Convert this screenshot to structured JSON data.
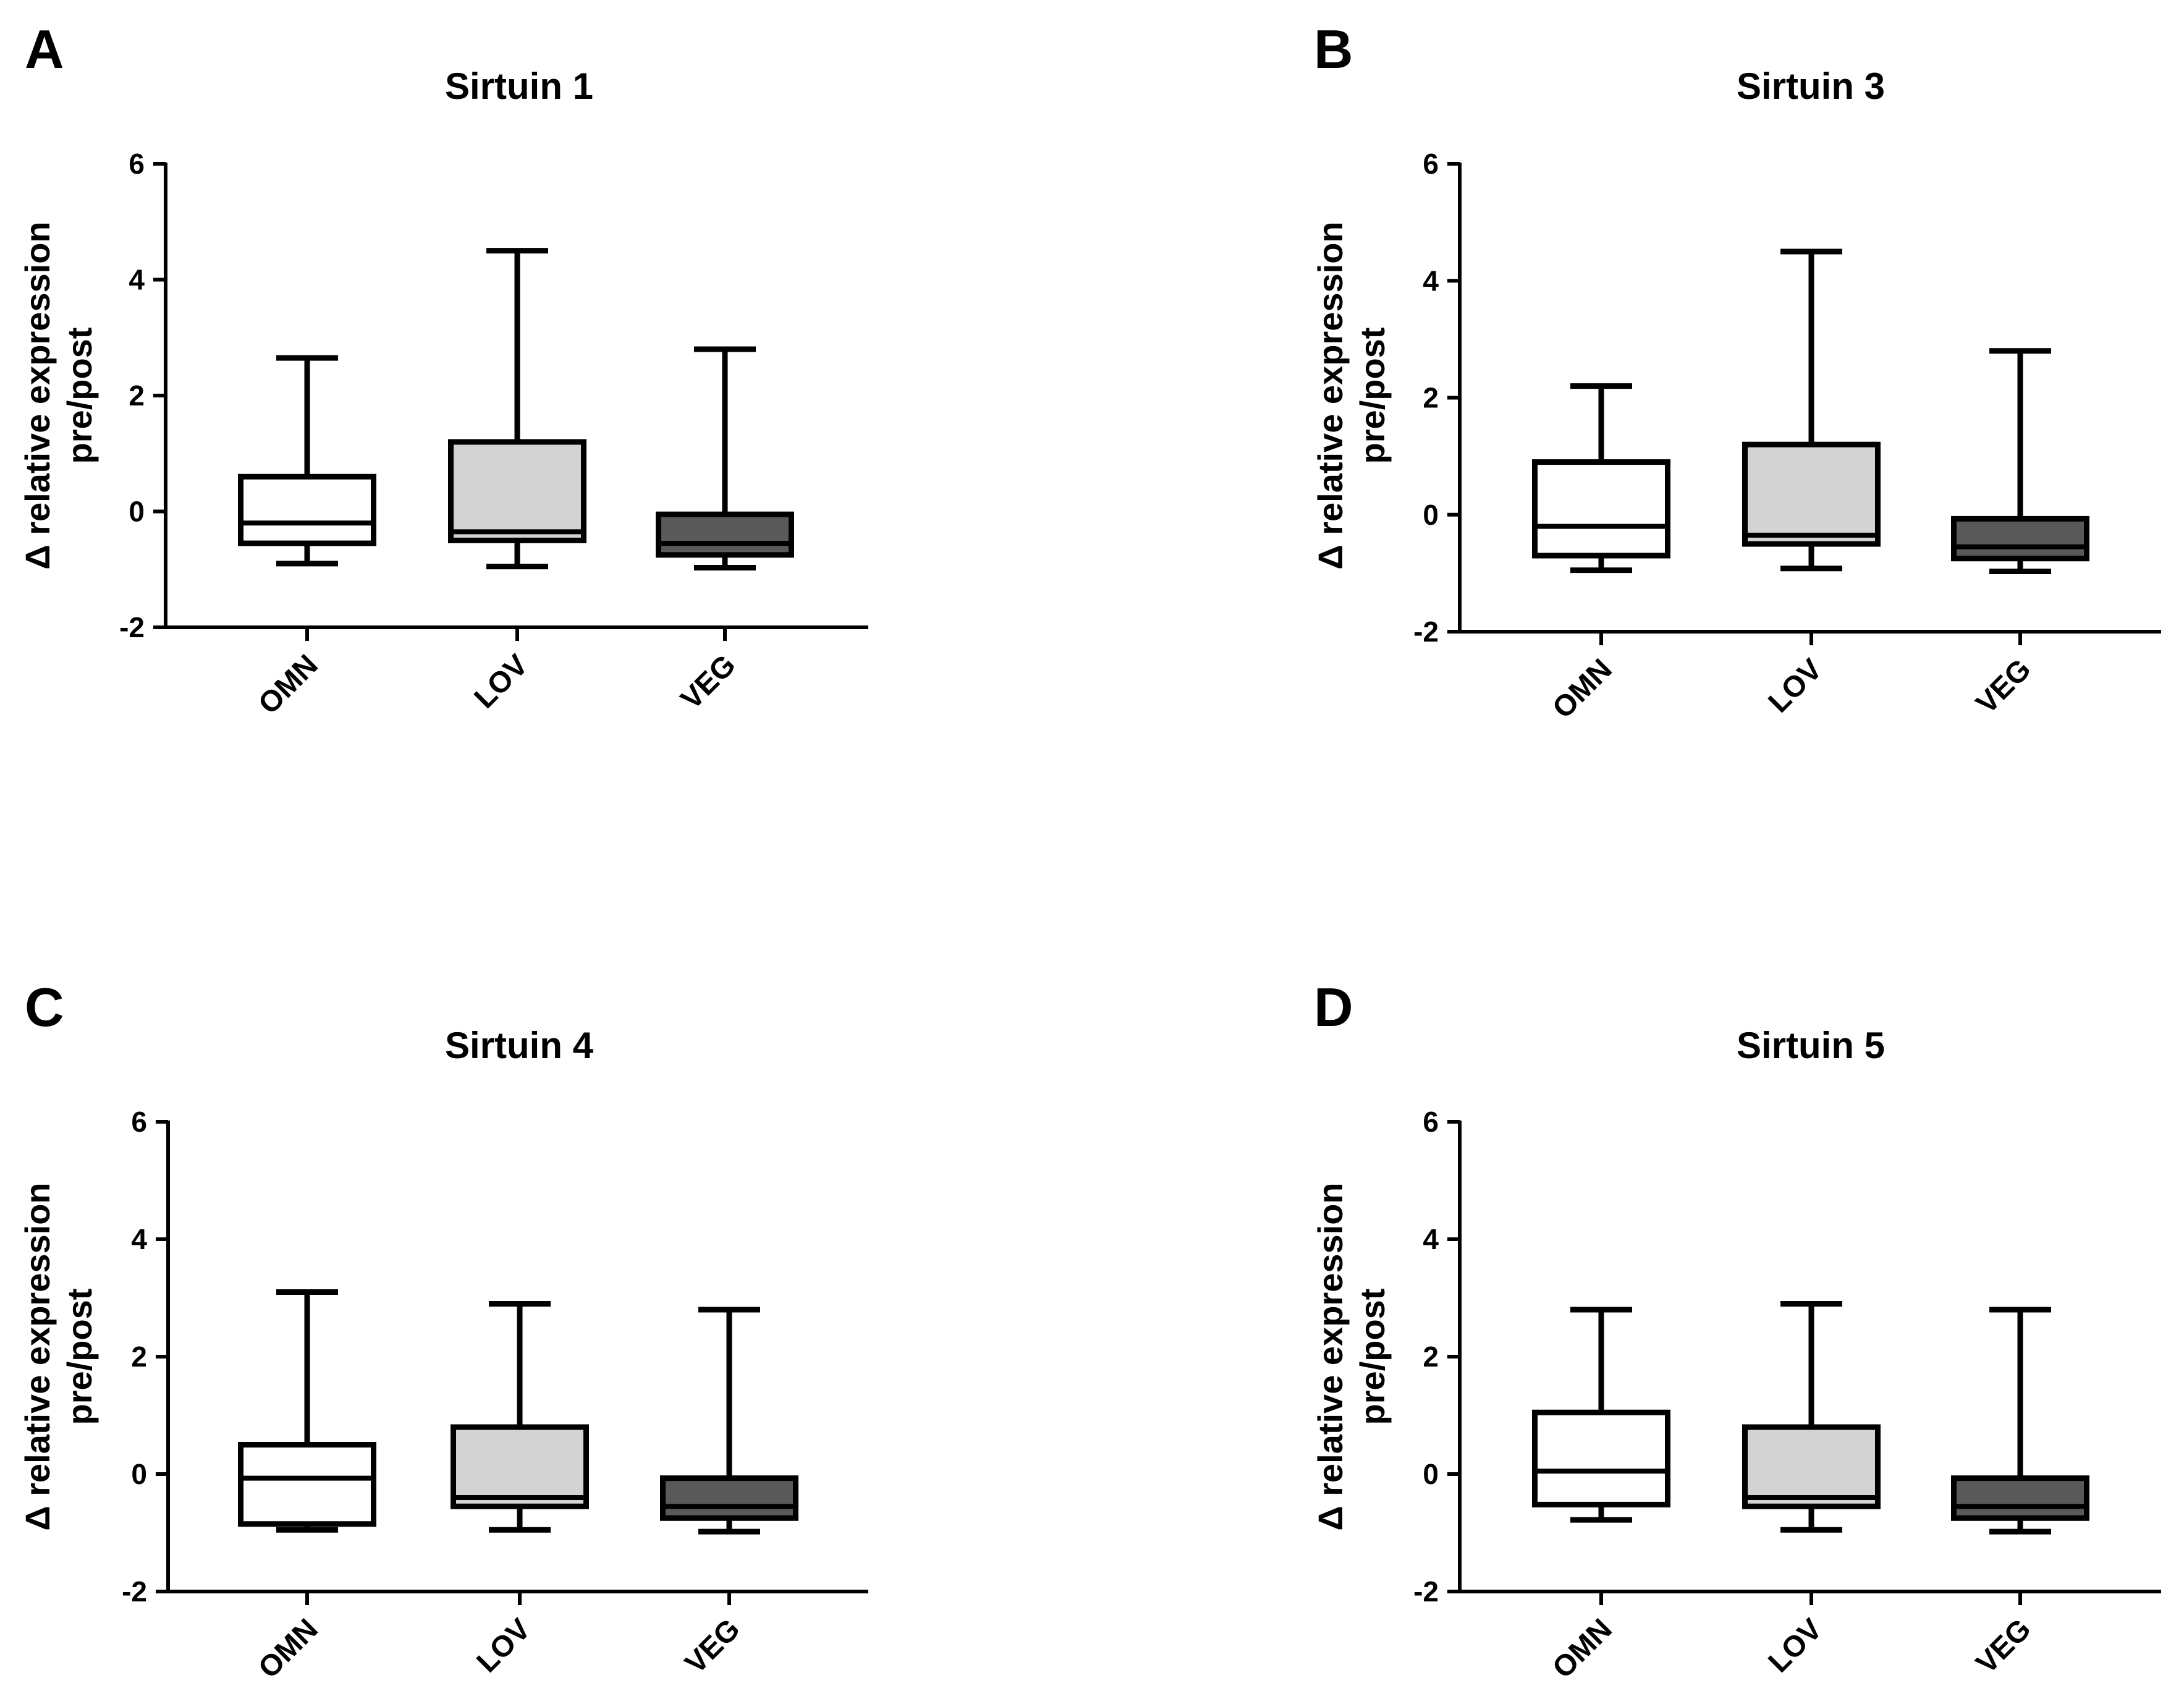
{
  "figure": {
    "panels": [
      {
        "letter": "A"
      },
      {
        "letter": "B"
      },
      {
        "letter": "C"
      },
      {
        "letter": "D"
      }
    ]
  },
  "colors": {
    "OMN": "#ffffff",
    "LOV": "#d3d3d3",
    "VEG": "#595959",
    "stroke": "#000000"
  },
  "chart_data": [
    {
      "type": "boxplot",
      "panel": "A",
      "title": "Sirtuin 1",
      "xlabel": "",
      "ylabel_line1": "Δ relative expression",
      "ylabel_line2": "pre/post",
      "ylim": [
        -2,
        6
      ],
      "yticks": [
        -2,
        0,
        2,
        4,
        6
      ],
      "categories": [
        "OMN",
        "LOV",
        "VEG"
      ],
      "boxes": [
        {
          "category": "OMN",
          "min": -0.9,
          "q1": -0.55,
          "median": -0.2,
          "q3": 0.6,
          "max": 2.65
        },
        {
          "category": "LOV",
          "min": -0.95,
          "q1": -0.5,
          "median": -0.35,
          "q3": 1.2,
          "max": 4.5
        },
        {
          "category": "VEG",
          "min": -0.97,
          "q1": -0.75,
          "median": -0.55,
          "q3": -0.05,
          "max": 2.8
        }
      ]
    },
    {
      "type": "boxplot",
      "panel": "B",
      "title": "Sirtuin 3",
      "xlabel": "",
      "ylabel_line1": "Δ relative expression",
      "ylabel_line2": "pre/post",
      "ylim": [
        -2,
        6
      ],
      "yticks": [
        -2,
        0,
        2,
        4,
        6
      ],
      "categories": [
        "OMN",
        "LOV",
        "VEG"
      ],
      "boxes": [
        {
          "category": "OMN",
          "min": -0.95,
          "q1": -0.7,
          "median": -0.2,
          "q3": 0.9,
          "max": 2.2
        },
        {
          "category": "LOV",
          "min": -0.92,
          "q1": -0.5,
          "median": -0.35,
          "q3": 1.2,
          "max": 4.5
        },
        {
          "category": "VEG",
          "min": -0.97,
          "q1": -0.75,
          "median": -0.55,
          "q3": -0.07,
          "max": 2.8
        }
      ]
    },
    {
      "type": "boxplot",
      "panel": "C",
      "title": "Sirtuin 4",
      "xlabel": "",
      "ylabel_line1": "Δ relative expression",
      "ylabel_line2": "pre/post",
      "ylim": [
        -2,
        6
      ],
      "yticks": [
        -2,
        0,
        2,
        4,
        6
      ],
      "categories": [
        "OMN",
        "LOV",
        "VEG"
      ],
      "boxes": [
        {
          "category": "OMN",
          "min": -0.95,
          "q1": -0.85,
          "median": -0.07,
          "q3": 0.5,
          "max": 3.1
        },
        {
          "category": "LOV",
          "min": -0.95,
          "q1": -0.55,
          "median": -0.4,
          "q3": 0.8,
          "max": 2.9
        },
        {
          "category": "VEG",
          "min": -0.98,
          "q1": -0.75,
          "median": -0.55,
          "q3": -0.07,
          "max": 2.8
        }
      ]
    },
    {
      "type": "boxplot",
      "panel": "D",
      "title": "Sirtuin 5",
      "xlabel": "",
      "ylabel_line1": "Δ relative expression",
      "ylabel_line2": "pre/post",
      "ylim": [
        -2,
        6
      ],
      "yticks": [
        -2,
        0,
        2,
        4,
        6
      ],
      "categories": [
        "OMN",
        "LOV",
        "VEG"
      ],
      "boxes": [
        {
          "category": "OMN",
          "min": -0.78,
          "q1": -0.52,
          "median": 0.05,
          "q3": 1.05,
          "max": 2.8
        },
        {
          "category": "LOV",
          "min": -0.95,
          "q1": -0.55,
          "median": -0.4,
          "q3": 0.8,
          "max": 2.9
        },
        {
          "category": "VEG",
          "min": -0.98,
          "q1": -0.75,
          "median": -0.55,
          "q3": -0.07,
          "max": 2.8
        }
      ]
    }
  ]
}
